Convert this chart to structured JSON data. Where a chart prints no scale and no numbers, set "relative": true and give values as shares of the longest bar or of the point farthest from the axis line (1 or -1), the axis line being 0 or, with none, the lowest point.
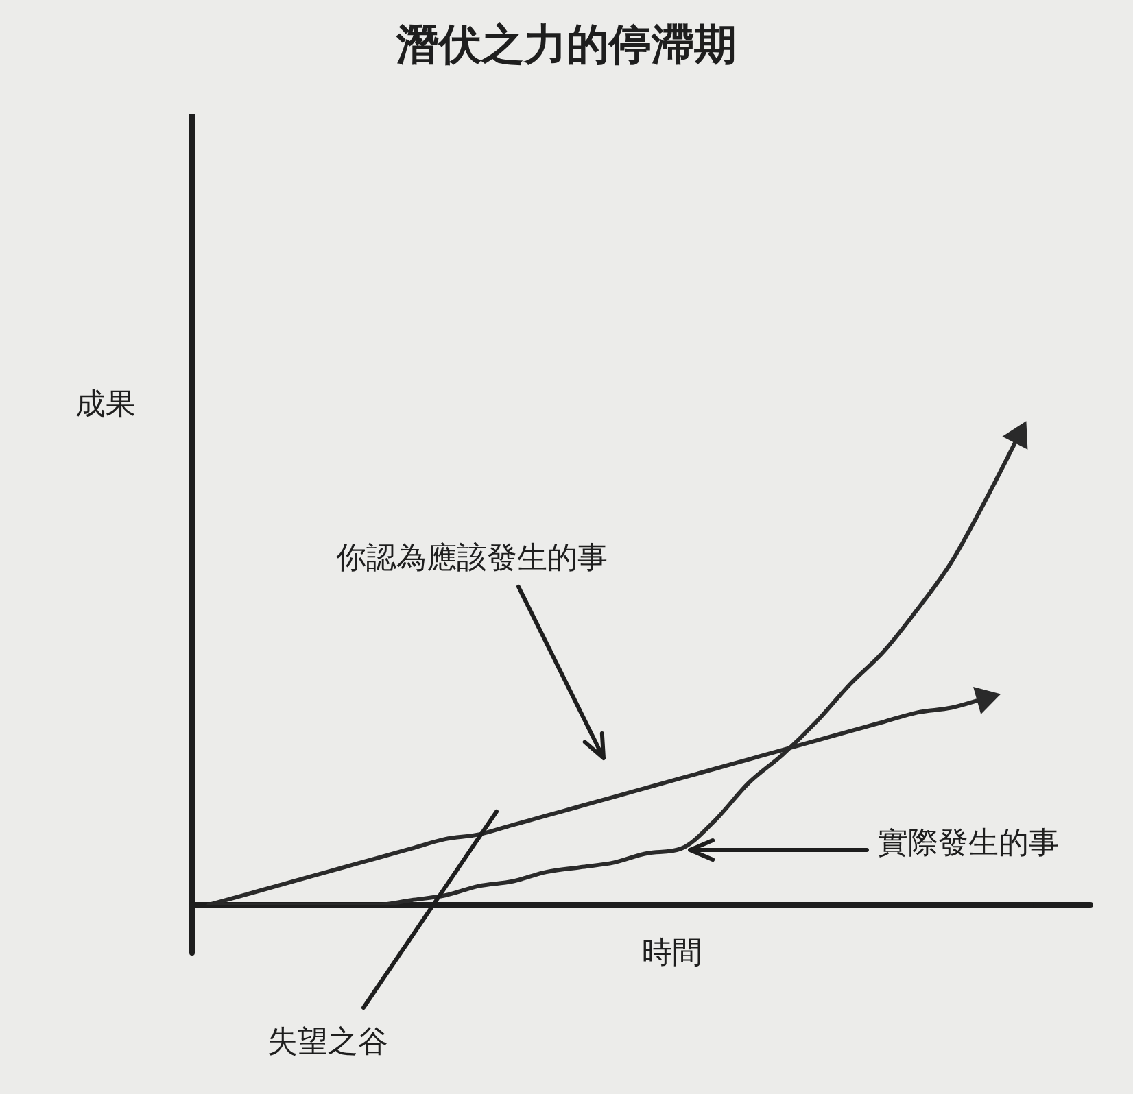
{
  "chart_data": {
    "type": "line",
    "title": "潛伏之力的停滯期",
    "xlabel": "時間",
    "ylabel": "成果",
    "relative": true,
    "legend": false,
    "marker": "none",
    "line_style": "solid",
    "categories": [
      null,
      null,
      null,
      null,
      null,
      null,
      null,
      null,
      null,
      null,
      null,
      null,
      null,
      null,
      null,
      null,
      null,
      null,
      null,
      null,
      null,
      null,
      null,
      null,
      null
    ],
    "series": [
      {
        "color": "#2a2a2a",
        "values": [
          0,
          0.02,
          0.04,
          0.06,
          0.08,
          0.1,
          0.12,
          0.14,
          0.15,
          0.17,
          0.19,
          0.21,
          0.23,
          0.25,
          0.27,
          0.29,
          0.31,
          0.33,
          0.35,
          0.37,
          0.39,
          0.41,
          0.42,
          0.44,
          null
        ]
      },
      {
        "color": "#2a2a2a",
        "values": [
          0,
          0,
          0,
          0,
          0,
          0,
          0.01,
          0.02,
          0.04,
          0.05,
          0.07,
          0.08,
          0.09,
          0.11,
          0.12,
          0.18,
          0.26,
          0.32,
          0.39,
          0.47,
          0.54,
          0.63,
          0.73,
          0.86,
          1
        ]
      }
    ],
    "annotations": [
      "你認為應該發生的事",
      "實際發生的事",
      "失望之谷"
    ]
  }
}
